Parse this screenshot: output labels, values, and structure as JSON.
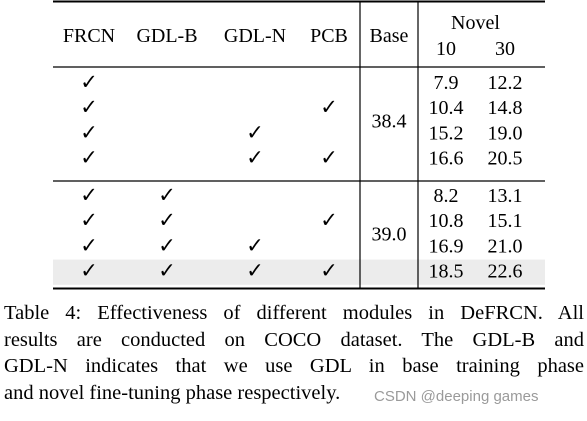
{
  "table": {
    "headers": [
      "FRCN",
      "GDL-B",
      "GDL-N",
      "PCB",
      "Base"
    ],
    "novel_header": "Novel",
    "novel_shots": [
      "10",
      "30"
    ],
    "check_mark": "✓",
    "groups": [
      {
        "base": "38.4",
        "rows": [
          {
            "frcn": true,
            "gdl_b": false,
            "gdl_n": false,
            "pcb": false,
            "novel10": "7.9",
            "novel30": "12.2",
            "highlight": false
          },
          {
            "frcn": true,
            "gdl_b": false,
            "gdl_n": false,
            "pcb": true,
            "novel10": "10.4",
            "novel30": "14.8",
            "highlight": false
          },
          {
            "frcn": true,
            "gdl_b": false,
            "gdl_n": true,
            "pcb": false,
            "novel10": "15.2",
            "novel30": "19.0",
            "highlight": false
          },
          {
            "frcn": true,
            "gdl_b": false,
            "gdl_n": true,
            "pcb": true,
            "novel10": "16.6",
            "novel30": "20.5",
            "highlight": false
          }
        ]
      },
      {
        "base": "39.0",
        "rows": [
          {
            "frcn": true,
            "gdl_b": true,
            "gdl_n": false,
            "pcb": false,
            "novel10": "8.2",
            "novel30": "13.1",
            "highlight": false
          },
          {
            "frcn": true,
            "gdl_b": true,
            "gdl_n": false,
            "pcb": true,
            "novel10": "10.8",
            "novel30": "15.1",
            "highlight": false
          },
          {
            "frcn": true,
            "gdl_b": true,
            "gdl_n": true,
            "pcb": false,
            "novel10": "16.9",
            "novel30": "21.0",
            "highlight": false
          },
          {
            "frcn": true,
            "gdl_b": true,
            "gdl_n": true,
            "pcb": true,
            "novel10": "18.5",
            "novel30": "22.6",
            "highlight": true
          }
        ]
      }
    ],
    "highlight_color": "#ececec"
  },
  "caption": {
    "lines": [
      "Table 4: Effectiveness of different modules in DeFRCN. All",
      "results are conducted on COCO dataset.  The GDL-B and",
      "GDL-N indicates that we use GDL in base training phase",
      "and novel fine-tuning phase respectively."
    ]
  },
  "watermark": "CSDN @deeping games"
}
